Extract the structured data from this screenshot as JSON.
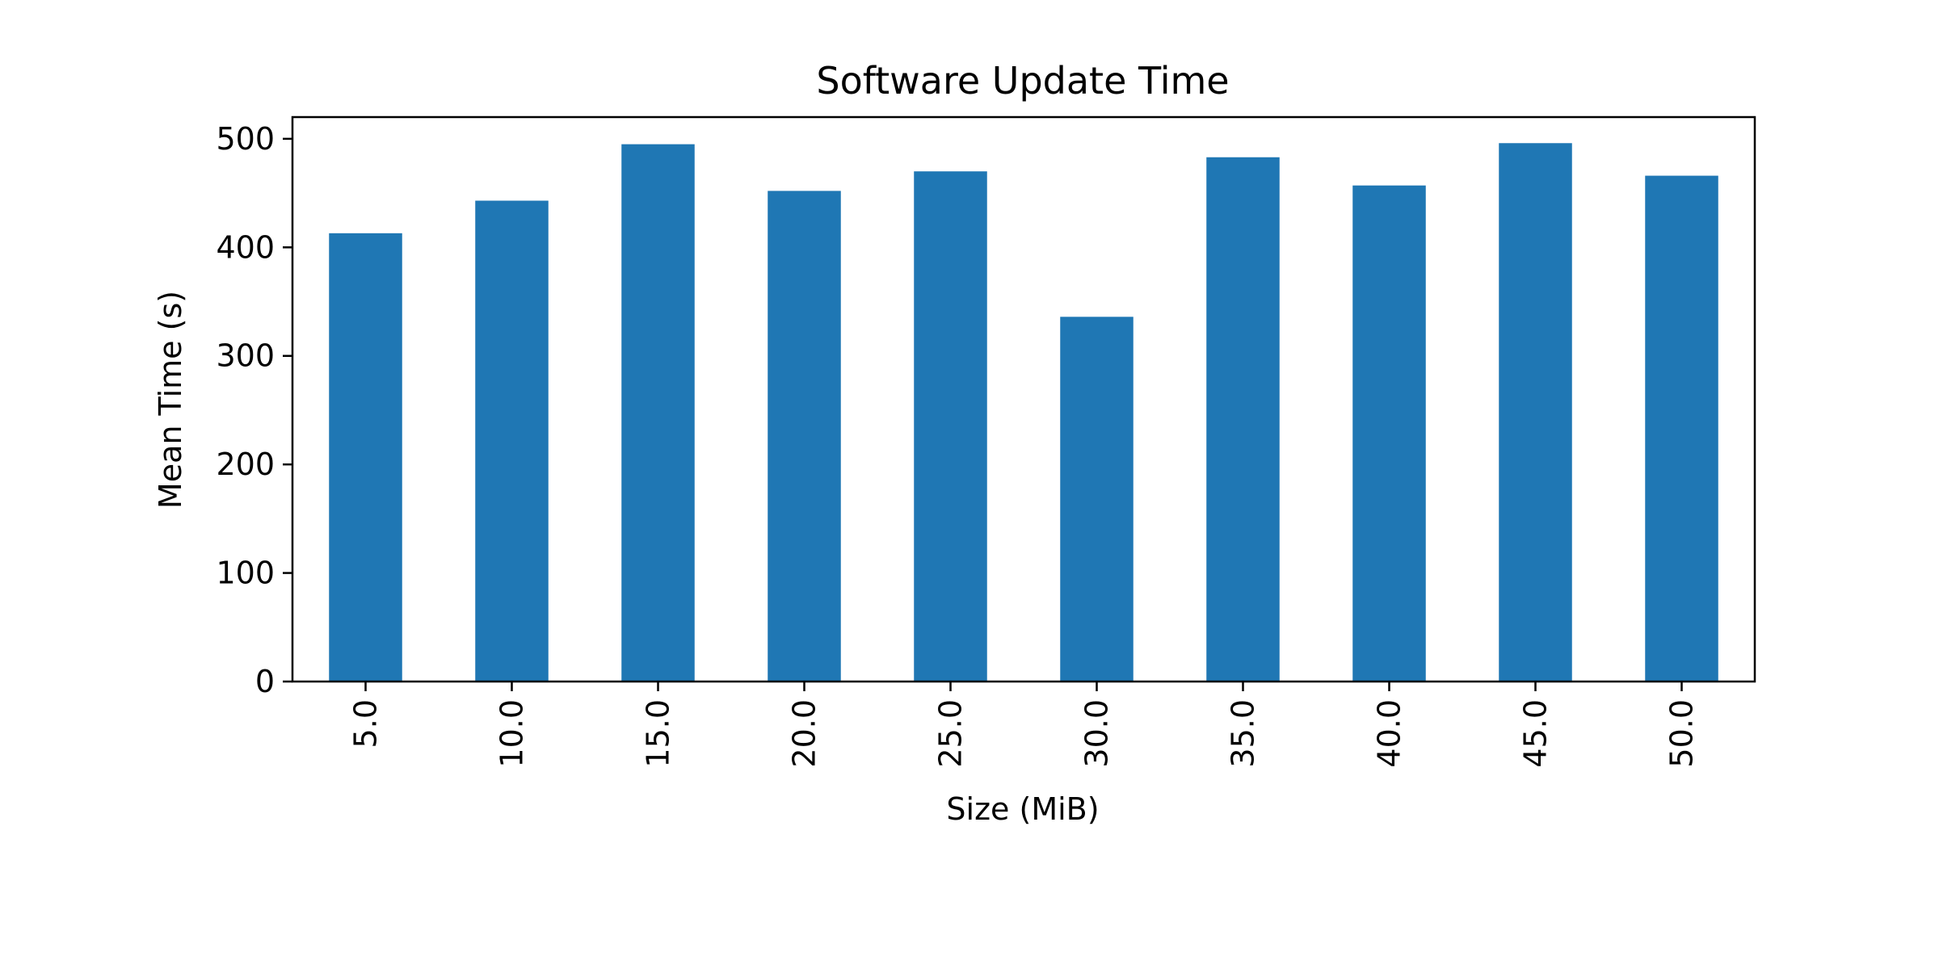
{
  "chart_data": {
    "type": "bar",
    "title": "Software Update Time",
    "xlabel": "Size (MiB)",
    "ylabel": "Mean Time (s)",
    "categories": [
      "5.0",
      "10.0",
      "15.0",
      "20.0",
      "25.0",
      "30.0",
      "35.0",
      "40.0",
      "45.0",
      "50.0"
    ],
    "values": [
      413,
      443,
      495,
      452,
      470,
      336,
      483,
      457,
      496,
      466
    ],
    "ylim": [
      0,
      520
    ],
    "yticks": [
      0,
      100,
      200,
      300,
      400,
      500
    ],
    "grid": false,
    "legend": "none",
    "bar_color": "#1f77b4"
  }
}
